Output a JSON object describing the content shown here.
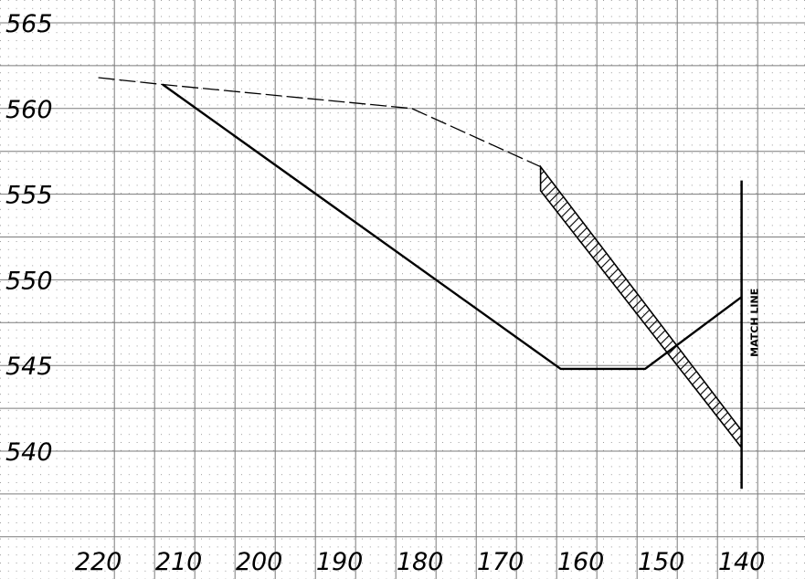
{
  "chart_data": {
    "type": "line",
    "x_axis": {
      "range": [
        222,
        138
      ],
      "ticks": [
        220,
        210,
        200,
        190,
        180,
        170,
        160,
        150,
        140
      ],
      "tick_labels": [
        "220",
        "210",
        "200",
        "190",
        "180",
        "170",
        "160",
        "150",
        "140"
      ],
      "reversed": true
    },
    "y_axis": {
      "range": [
        538,
        566.5
      ],
      "ticks": [
        565,
        560,
        555,
        550,
        545,
        540
      ],
      "tick_labels": [
        "565",
        "560",
        "555",
        "550",
        "545",
        "540"
      ]
    },
    "grid": true,
    "series": [
      {
        "style": "dashed",
        "points": [
          [
            220,
            561.8
          ],
          [
            212,
            561.4
          ],
          [
            181,
            560.0
          ],
          [
            165,
            556.6
          ]
        ]
      },
      {
        "style": "solid",
        "points": [
          [
            212,
            561.4
          ],
          [
            162.5,
            544.8
          ],
          [
            152,
            544.8
          ],
          [
            140,
            549.0
          ]
        ]
      },
      {
        "style": "hatched-band",
        "upper": [
          [
            165,
            556.6
          ],
          [
            140,
            541.2
          ]
        ],
        "lower": [
          [
            165,
            555.2
          ],
          [
            140,
            540.2
          ]
        ]
      }
    ],
    "annotations": [
      {
        "text": "MATCH LINE",
        "x": 140,
        "y_from": 555.8,
        "y_to": 537.8
      }
    ]
  }
}
